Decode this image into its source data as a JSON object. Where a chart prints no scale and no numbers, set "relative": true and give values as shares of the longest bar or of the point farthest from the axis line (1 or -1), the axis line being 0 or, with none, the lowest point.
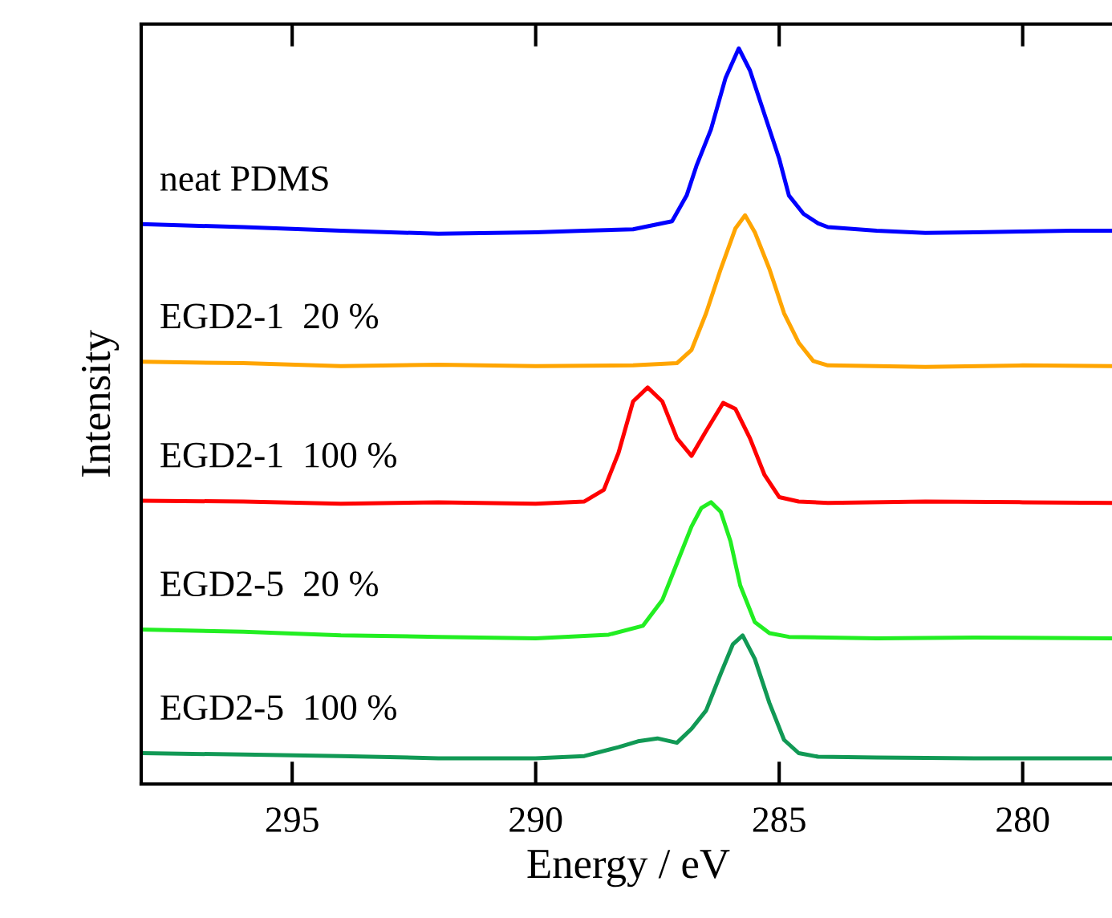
{
  "chart_data": {
    "type": "line",
    "xlabel": "Energy / eV",
    "ylabel": "Intensity",
    "relative": true,
    "xlim": [
      298.1,
      278.1
    ],
    "xticks": [
      295,
      290,
      285,
      280
    ],
    "grid": false,
    "legend": false,
    "marker": "none",
    "line_style": "solid",
    "series": [
      {
        "name": "neat PDMS",
        "color": "#0000ff",
        "x": [
          298.1,
          296,
          294,
          292,
          290,
          289,
          288,
          287.2,
          286.9,
          286.7,
          286.4,
          286.1,
          285.83,
          285.6,
          285.3,
          285.0,
          284.8,
          284.5,
          284.2,
          284,
          283,
          282,
          281,
          280,
          279,
          278.1
        ],
        "values": [
          0.761,
          0.757,
          0.752,
          0.748,
          0.75,
          0.752,
          0.754,
          0.765,
          0.8,
          0.84,
          0.89,
          0.96,
          1.0,
          0.97,
          0.91,
          0.85,
          0.8,
          0.775,
          0.762,
          0.757,
          0.752,
          0.749,
          0.75,
          0.751,
          0.752,
          0.752
        ]
      },
      {
        "name": "EGD2-1  20 %",
        "color": "#ffa500",
        "x": [
          298.1,
          296,
          294,
          292,
          290,
          288,
          287.1,
          286.8,
          286.5,
          286.2,
          285.9,
          285.7,
          285.5,
          285.2,
          284.9,
          284.6,
          284.3,
          284,
          282,
          280,
          278.1
        ],
        "values": [
          0.574,
          0.572,
          0.568,
          0.57,
          0.568,
          0.569,
          0.572,
          0.59,
          0.64,
          0.7,
          0.755,
          0.773,
          0.75,
          0.7,
          0.64,
          0.6,
          0.575,
          0.569,
          0.567,
          0.569,
          0.568
        ]
      },
      {
        "name": "EGD2-1  100 %",
        "color": "#ff0000",
        "x": [
          298.1,
          296,
          294,
          292,
          290,
          289,
          288.6,
          288.3,
          288.0,
          287.7,
          287.4,
          287.1,
          286.8,
          286.5,
          286.15,
          285.9,
          285.6,
          285.3,
          285.0,
          284.6,
          284,
          282,
          280,
          278.1
        ],
        "values": [
          0.385,
          0.384,
          0.381,
          0.383,
          0.381,
          0.384,
          0.4,
          0.45,
          0.52,
          0.539,
          0.52,
          0.47,
          0.446,
          0.48,
          0.518,
          0.51,
          0.47,
          0.42,
          0.39,
          0.384,
          0.382,
          0.384,
          0.383,
          0.382
        ]
      },
      {
        "name": "EGD2-5  20 %",
        "color": "#22ee22",
        "x": [
          298.1,
          296,
          294,
          292,
          290,
          288.5,
          287.8,
          287.4,
          287.1,
          286.8,
          286.6,
          286.4,
          286.2,
          286.0,
          285.8,
          285.5,
          285.2,
          284.8,
          283,
          281,
          278.1
        ],
        "values": [
          0.21,
          0.207,
          0.202,
          0.2,
          0.198,
          0.203,
          0.215,
          0.25,
          0.3,
          0.35,
          0.375,
          0.383,
          0.37,
          0.33,
          0.27,
          0.22,
          0.205,
          0.2,
          0.198,
          0.199,
          0.198
        ]
      },
      {
        "name": "EGD2-5  100 %",
        "color": "#119955",
        "x": [
          298.1,
          296,
          294,
          292,
          290,
          289,
          288.3,
          287.9,
          287.5,
          287.1,
          286.8,
          286.5,
          286.2,
          285.95,
          285.75,
          285.5,
          285.2,
          284.9,
          284.6,
          284.2,
          283,
          281,
          278.1
        ],
        "values": [
          0.042,
          0.04,
          0.038,
          0.035,
          0.035,
          0.038,
          0.05,
          0.058,
          0.062,
          0.056,
          0.075,
          0.1,
          0.15,
          0.19,
          0.202,
          0.17,
          0.11,
          0.06,
          0.042,
          0.037,
          0.036,
          0.035,
          0.035
        ]
      }
    ]
  }
}
